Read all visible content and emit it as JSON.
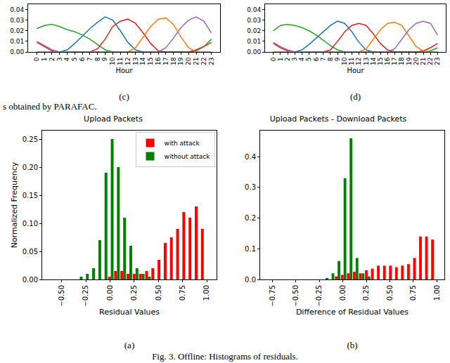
{
  "chart_data": [
    {
      "type": "line",
      "caption": "(c)",
      "xlabel": "Hour",
      "x": [
        0,
        1,
        2,
        3,
        4,
        5,
        6,
        7,
        8,
        9,
        10,
        11,
        12,
        13,
        14,
        15,
        16,
        17,
        18,
        19,
        20,
        21,
        22,
        23
      ],
      "xlim": [
        -1.15,
        24.15
      ],
      "xticks": [
        0,
        1,
        2,
        3,
        4,
        5,
        6,
        7,
        8,
        9,
        10,
        11,
        12,
        13,
        14,
        15,
        16,
        17,
        18,
        19,
        20,
        21,
        22,
        23
      ],
      "ylim": [
        0,
        0.045
      ],
      "yticks": [
        {
          "value": 0,
          "label": "0.00"
        },
        {
          "value": 0.01,
          "label": "0.01"
        },
        {
          "value": 0.02,
          "label": "0.02"
        },
        {
          "value": 0.03,
          "label": "0.03"
        },
        {
          "value": 0.04,
          "label": "0.04"
        }
      ],
      "series": [
        {
          "color": "#2ca02c",
          "values": [
            0.022,
            0.025,
            0.026,
            0.024,
            0.021,
            0.019,
            0.016,
            0.012,
            0.007,
            0.002,
            0,
            0,
            0,
            0,
            0,
            0,
            0,
            0,
            0,
            0,
            0,
            0.001,
            0.005,
            0.012
          ]
        },
        {
          "color": "#1f77b4",
          "values": [
            0,
            0,
            0,
            0,
            0.002,
            0.008,
            0.015,
            0.022,
            0.028,
            0.033,
            0.03,
            0.02,
            0.009,
            0.002,
            0,
            0,
            0,
            0,
            0,
            0,
            0,
            0,
            0,
            0
          ]
        },
        {
          "color": "#d62728",
          "values": [
            0.009,
            0.005,
            0.001,
            0,
            0,
            0,
            0,
            0,
            0.003,
            0.012,
            0.024,
            0.029,
            0.031,
            0.027,
            0.018,
            0.008,
            0.001,
            0,
            0,
            0,
            0,
            0.002,
            0.005,
            0.009
          ]
        },
        {
          "color": "#ff7f0e",
          "values": [
            0,
            0,
            0,
            0,
            0,
            0,
            0,
            0,
            0,
            0,
            0,
            0,
            0,
            0.004,
            0.014,
            0.024,
            0.031,
            0.032,
            0.026,
            0.014,
            0.004,
            0,
            0,
            0
          ]
        },
        {
          "color": "#9467bd",
          "values": [
            0.01,
            0.006,
            0.002,
            0,
            0,
            0,
            0,
            0,
            0,
            0,
            0,
            0,
            0,
            0,
            0,
            0,
            0,
            0.004,
            0.013,
            0.023,
            0.03,
            0.033,
            0.029,
            0.018
          ]
        }
      ]
    },
    {
      "type": "line",
      "caption": "(d)",
      "xlabel": "Hour",
      "x": [
        0,
        1,
        2,
        3,
        4,
        5,
        6,
        7,
        8,
        9,
        10,
        11,
        12,
        13,
        14,
        15,
        16,
        17,
        18,
        19,
        20,
        21,
        22,
        23
      ],
      "xlim": [
        -1.15,
        24.15
      ],
      "xticks": [
        0,
        1,
        2,
        3,
        4,
        5,
        6,
        7,
        8,
        9,
        10,
        11,
        12,
        13,
        14,
        15,
        16,
        17,
        18,
        19,
        20,
        21,
        22,
        23
      ],
      "ylim": [
        0,
        0.045
      ],
      "yticks": [
        {
          "value": 0,
          "label": "0.00"
        },
        {
          "value": 0.01,
          "label": "0.01"
        },
        {
          "value": 0.02,
          "label": "0.02"
        },
        {
          "value": 0.03,
          "label": "0.03"
        },
        {
          "value": 0.04,
          "label": "0.04"
        }
      ],
      "series": [
        {
          "color": "#2ca02c",
          "values": [
            0.02,
            0.025,
            0.026,
            0.025,
            0.023,
            0.02,
            0.016,
            0.011,
            0.006,
            0.002,
            0,
            0,
            0,
            0,
            0,
            0,
            0,
            0,
            0,
            0,
            0,
            0,
            0.001,
            0.004
          ]
        },
        {
          "color": "#1f77b4",
          "values": [
            0,
            0,
            0,
            0,
            0.002,
            0.007,
            0.013,
            0.019,
            0.025,
            0.029,
            0.027,
            0.019,
            0.009,
            0.002,
            0,
            0,
            0,
            0,
            0,
            0,
            0,
            0,
            0,
            0
          ]
        },
        {
          "color": "#d62728",
          "values": [
            0.008,
            0.004,
            0.001,
            0,
            0,
            0,
            0,
            0,
            0.002,
            0.01,
            0.019,
            0.025,
            0.027,
            0.025,
            0.017,
            0.008,
            0.002,
            0,
            0,
            0,
            0,
            0.001,
            0.004,
            0.008
          ]
        },
        {
          "color": "#ff7f0e",
          "values": [
            0,
            0,
            0,
            0,
            0,
            0,
            0,
            0,
            0,
            0,
            0,
            0,
            0,
            0.003,
            0.012,
            0.021,
            0.027,
            0.028,
            0.025,
            0.015,
            0.005,
            0.001,
            0,
            0
          ]
        },
        {
          "color": "#9467bd",
          "values": [
            0.009,
            0.005,
            0.002,
            0,
            0,
            0,
            0,
            0,
            0,
            0,
            0,
            0,
            0,
            0,
            0,
            0,
            0,
            0.003,
            0.012,
            0.021,
            0.027,
            0.029,
            0.027,
            0.016
          ]
        }
      ]
    },
    {
      "type": "histogram",
      "title": "Upload Packets",
      "caption": "(a)",
      "xlabel": "Residual Values",
      "ylabel": "Normalized Frequency",
      "bins": [
        -0.6,
        -0.536,
        -0.472,
        -0.408,
        -0.344,
        -0.28,
        -0.216,
        -0.152,
        -0.088,
        -0.024,
        0.04,
        0.104,
        0.168,
        0.232,
        0.296,
        0.36,
        0.424,
        0.488,
        0.552,
        0.616,
        0.68,
        0.744,
        0.808,
        0.872,
        0.936,
        1.0
      ],
      "xlim": [
        -0.7,
        1.1
      ],
      "xticks": [
        {
          "value": -0.5,
          "label": "−0.50"
        },
        {
          "value": -0.25,
          "label": "−0.25"
        },
        {
          "value": 0,
          "label": "0.00"
        },
        {
          "value": 0.25,
          "label": "0.25"
        },
        {
          "value": 0.5,
          "label": "0.50"
        },
        {
          "value": 0.75,
          "label": "0.75"
        },
        {
          "value": 1,
          "label": "1.00"
        }
      ],
      "ylim": [
        0,
        0.265
      ],
      "yticks": [
        {
          "value": 0,
          "label": "0.00"
        },
        {
          "value": 0.05,
          "label": "0.05"
        },
        {
          "value": 0.1,
          "label": "0.10"
        },
        {
          "value": 0.15,
          "label": "0.15"
        },
        {
          "value": 0.2,
          "label": "0.20"
        },
        {
          "value": 0.25,
          "label": "0.25"
        }
      ],
      "legend": "upper right",
      "series": [
        {
          "name": "with attack",
          "color": "#ff0000",
          "values": [
            0,
            0,
            0,
            0,
            0,
            0,
            0,
            0,
            0,
            0.005,
            0.015,
            0.015,
            0.01,
            0.01,
            0.01,
            0.015,
            0.02,
            0.035,
            0.065,
            0.075,
            0.09,
            0.12,
            0.11,
            0.13,
            0.09
          ]
        },
        {
          "name": "without attack",
          "color": "#008000",
          "values": [
            0,
            0,
            0,
            0,
            0.005,
            0.01,
            0.02,
            0.07,
            0.19,
            0.25,
            0.2,
            0.11,
            0.06,
            0.02,
            0.01,
            0.005,
            0,
            0,
            0,
            0,
            0,
            0,
            0,
            0,
            0
          ]
        }
      ]
    },
    {
      "type": "histogram",
      "title": "Upload Packets - Download Packets",
      "caption": "(b)",
      "xlabel": "Difference of Residual Values",
      "bins": [
        -0.6,
        -0.536,
        -0.472,
        -0.408,
        -0.344,
        -0.28,
        -0.216,
        -0.152,
        -0.088,
        -0.024,
        0.04,
        0.104,
        0.168,
        0.232,
        0.296,
        0.36,
        0.424,
        0.488,
        0.552,
        0.616,
        0.68,
        0.744,
        0.808,
        0.872,
        0.936,
        1.0
      ],
      "xlim": [
        -0.88,
        1.08
      ],
      "xticks": [
        {
          "value": -0.75,
          "label": "−0.75"
        },
        {
          "value": -0.5,
          "label": "−0.50"
        },
        {
          "value": -0.25,
          "label": "−0.25"
        },
        {
          "value": 0,
          "label": "0.00"
        },
        {
          "value": 0.25,
          "label": "0.25"
        },
        {
          "value": 0.5,
          "label": "0.50"
        },
        {
          "value": 0.75,
          "label": "0.75"
        },
        {
          "value": 1,
          "label": "1.00"
        }
      ],
      "ylim": [
        0,
        0.485
      ],
      "yticks": [
        {
          "value": 0,
          "label": "0.0"
        },
        {
          "value": 0.1,
          "label": "0.1"
        },
        {
          "value": 0.2,
          "label": "0.2"
        },
        {
          "value": 0.3,
          "label": "0.3"
        },
        {
          "value": 0.4,
          "label": "0.4"
        }
      ],
      "series": [
        {
          "name": "with attack",
          "color": "#ff0000",
          "values": [
            0,
            0,
            0,
            0,
            0,
            0,
            0,
            0,
            0.01,
            0.015,
            0.02,
            0.025,
            0.02,
            0.03,
            0.035,
            0.045,
            0.045,
            0.045,
            0.04,
            0.045,
            0.05,
            0.07,
            0.14,
            0.14,
            0.13
          ]
        },
        {
          "name": "without attack",
          "color": "#008000",
          "values": [
            0,
            0,
            0,
            0,
            0,
            0,
            0.005,
            0.02,
            0.06,
            0.33,
            0.46,
            0.07,
            0.02,
            0.01,
            0,
            0,
            0,
            0,
            0,
            0,
            0,
            0,
            0,
            0,
            0
          ]
        }
      ]
    }
  ],
  "figure_captions": [
    "s obtained by PARAFAC.",
    "Fig. 3. Offline: Histograms of residuals."
  ]
}
